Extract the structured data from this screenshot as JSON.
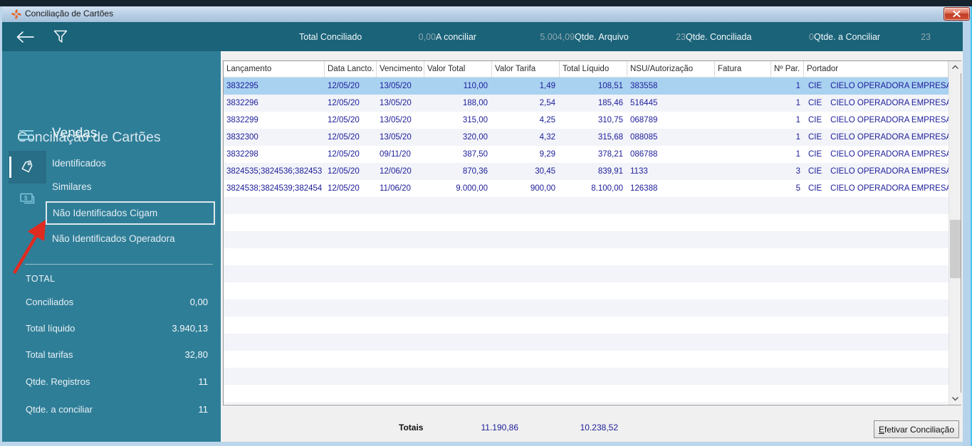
{
  "window": {
    "title": "Conciliação de Cartões"
  },
  "toolbar": {
    "stats": [
      {
        "label": "Total Conciliado",
        "value": "0,00"
      },
      {
        "label": "A conciliar",
        "value": "5.004,09"
      },
      {
        "label": "Qtde. Arquivo",
        "value": "23"
      },
      {
        "label": "Qtde. Conciliada",
        "value": "0"
      },
      {
        "label": "Qtde. a Conciliar",
        "value": "23"
      }
    ]
  },
  "sidebar": {
    "title": "Conciliação de Cartões",
    "section": "Vendas",
    "items": [
      "Identificados",
      "Similares",
      "Não Identificados Cigam",
      "Não Identificados Operadora"
    ],
    "totals": {
      "header": "TOTAL",
      "rows": [
        {
          "label": "Conciliados",
          "value": "0,00"
        },
        {
          "label": "Total líquido",
          "value": "3.940,13"
        },
        {
          "label": "Total tarifas",
          "value": "32,80"
        },
        {
          "label": "Qtde. Registros",
          "value": "11"
        },
        {
          "label": "Qtde. a conciliar",
          "value": "11"
        }
      ]
    }
  },
  "table": {
    "columns": [
      "Lançamento",
      "Data Lancto.",
      "Vencimento",
      "Valor Total",
      "Valor Tarifa",
      "Total Líquido",
      "NSU/Autorização",
      "Fatura",
      "Nº Par.",
      "Portador"
    ],
    "rows": [
      {
        "cells": [
          "3832295",
          "12/05/20",
          "13/05/20",
          "110,00",
          "1,49",
          "108,51",
          "383558",
          "",
          "1"
        ],
        "portador_code": "CIE",
        "portador_name": "CIELO OPERADORA EMPRESA",
        "selected": true
      },
      {
        "cells": [
          "3832296",
          "12/05/20",
          "13/05/20",
          "188,00",
          "2,54",
          "185,46",
          "516445",
          "",
          "1"
        ],
        "portador_code": "CIE",
        "portador_name": "CIELO OPERADORA EMPRESA",
        "selected": false
      },
      {
        "cells": [
          "3832299",
          "12/05/20",
          "13/05/20",
          "315,00",
          "4,25",
          "310,75",
          "068789",
          "",
          "1"
        ],
        "portador_code": "CIE",
        "portador_name": "CIELO OPERADORA EMPRESA",
        "selected": false
      },
      {
        "cells": [
          "3832300",
          "12/05/20",
          "13/05/20",
          "320,00",
          "4,32",
          "315,68",
          "088085",
          "",
          "1"
        ],
        "portador_code": "CIE",
        "portador_name": "CIELO OPERADORA EMPRESA",
        "selected": false
      },
      {
        "cells": [
          "3832298",
          "12/05/20",
          "09/11/20",
          "387,50",
          "9,29",
          "378,21",
          "086788",
          "",
          "1"
        ],
        "portador_code": "CIE",
        "portador_name": "CIELO OPERADORA EMPRESA",
        "selected": false
      },
      {
        "cells": [
          "3824535;3824536;382453",
          "12/05/20",
          "12/06/20",
          "870,36",
          "30,45",
          "839,91",
          "1133",
          "",
          "3"
        ],
        "portador_code": "CIE",
        "portador_name": "CIELO OPERADORA EMPRESA",
        "selected": false
      },
      {
        "cells": [
          "3824538;3824539;382454",
          "12/05/20",
          "11/06/20",
          "9.000,00",
          "900,00",
          "8.100,00",
          "126388",
          "",
          "5"
        ],
        "portador_code": "CIE",
        "portador_name": "CIELO OPERADORA EMPRESA",
        "selected": false
      }
    ],
    "footer": {
      "label": "Totais",
      "total_valor": "11.190,86",
      "total_liquido": "10.238,52"
    },
    "action_button": "Efetivar Conciliação"
  },
  "icons": [
    "app-logo",
    "close",
    "back-arrow",
    "filter-funnel",
    "hamburger-menu",
    "tag",
    "banknote",
    "scroll-up",
    "scroll-down",
    "red-annotation-arrow"
  ],
  "colors": {
    "toolbar_teal": "#1a6379",
    "sidebar_teal": "#2f7e98",
    "grid_text_navy": "#1c1c99",
    "selected_row": "#a9d2f1",
    "row_stripe": "#f2f4f9",
    "stat_value_gray": "#92a7b1",
    "annotation_red": "#e02b20",
    "close_button_red": "#c03c26",
    "frame_blue": "#bcd6ec"
  }
}
